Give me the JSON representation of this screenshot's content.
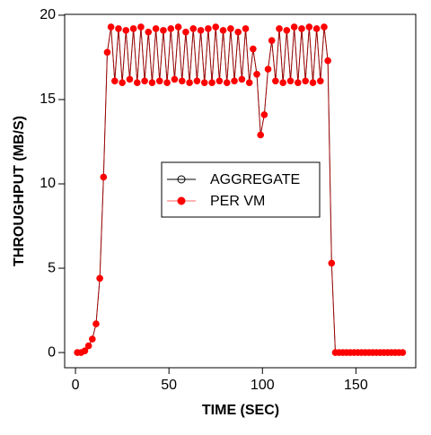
{
  "chart_data": {
    "type": "line",
    "xlabel": "TIME (SEC)",
    "ylabel": "THROUGHPUT (MB/S)",
    "xlim": [
      -5.8,
      182
    ],
    "ylim": [
      -0.9,
      20.05
    ],
    "xticks": [
      0,
      50,
      100,
      150
    ],
    "yticks": [
      0,
      5,
      10,
      15,
      20
    ],
    "legend": "center",
    "x": [
      1,
      3,
      5,
      7,
      9,
      11,
      13,
      15,
      17,
      19,
      21,
      23,
      25,
      27,
      29,
      31,
      33,
      35,
      37,
      39,
      41,
      43,
      45,
      47,
      49,
      51,
      53,
      55,
      57,
      59,
      61,
      63,
      65,
      67,
      69,
      71,
      73,
      75,
      77,
      79,
      81,
      83,
      85,
      87,
      89,
      91,
      93,
      95,
      97,
      99,
      101,
      103,
      105,
      107,
      109,
      111,
      113,
      115,
      117,
      119,
      121,
      123,
      125,
      127,
      129,
      131,
      133,
      135,
      137,
      139,
      141,
      143,
      145,
      147,
      149,
      151,
      153,
      155,
      157,
      159,
      161,
      163,
      165,
      167,
      169,
      171,
      173,
      175
    ],
    "series": [
      {
        "name": "AGGREGATE",
        "color": "#000000",
        "marker": "open",
        "values": [
          0,
          0,
          0.1,
          0.4,
          0.8,
          1.7,
          4.4,
          10.4,
          17.8,
          19.3,
          16.1,
          19.2,
          16.0,
          19.1,
          16.2,
          19.2,
          16.0,
          19.3,
          16.1,
          19.0,
          16.0,
          19.2,
          16.1,
          19.1,
          16.0,
          19.2,
          16.2,
          19.3,
          16.1,
          19.0,
          16.0,
          19.2,
          16.1,
          19.1,
          16.0,
          19.2,
          16.0,
          19.3,
          16.1,
          19.1,
          16.0,
          19.2,
          16.1,
          19.0,
          16.2,
          19.2,
          16.0,
          18.0,
          16.5,
          12.9,
          14.1,
          16.8,
          18.5,
          16.1,
          19.2,
          16.0,
          19.1,
          16.1,
          19.3,
          16.0,
          19.2,
          16.1,
          19.3,
          16.0,
          19.2,
          16.1,
          19.3,
          17.3,
          5.3,
          0,
          0,
          0,
          0,
          0,
          0,
          0,
          0,
          0,
          0,
          0,
          0,
          0,
          0,
          0,
          0,
          0,
          0,
          0
        ]
      },
      {
        "name": "PER VM",
        "color": "#ff0000",
        "marker": "filled",
        "values": [
          0,
          0,
          0.1,
          0.4,
          0.8,
          1.7,
          4.4,
          10.4,
          17.8,
          19.3,
          16.1,
          19.2,
          16.0,
          19.1,
          16.2,
          19.2,
          16.0,
          19.3,
          16.1,
          19.0,
          16.0,
          19.2,
          16.1,
          19.1,
          16.0,
          19.2,
          16.2,
          19.3,
          16.1,
          19.0,
          16.0,
          19.2,
          16.1,
          19.1,
          16.0,
          19.2,
          16.0,
          19.3,
          16.1,
          19.1,
          16.0,
          19.2,
          16.1,
          19.0,
          16.2,
          19.2,
          16.0,
          18.0,
          16.5,
          12.9,
          14.1,
          16.8,
          18.5,
          16.1,
          19.2,
          16.0,
          19.1,
          16.1,
          19.3,
          16.0,
          19.2,
          16.1,
          19.3,
          16.0,
          19.2,
          16.1,
          19.3,
          17.3,
          5.3,
          0,
          0,
          0,
          0,
          0,
          0,
          0,
          0,
          0,
          0,
          0,
          0,
          0,
          0,
          0,
          0,
          0,
          0,
          0
        ]
      }
    ]
  }
}
